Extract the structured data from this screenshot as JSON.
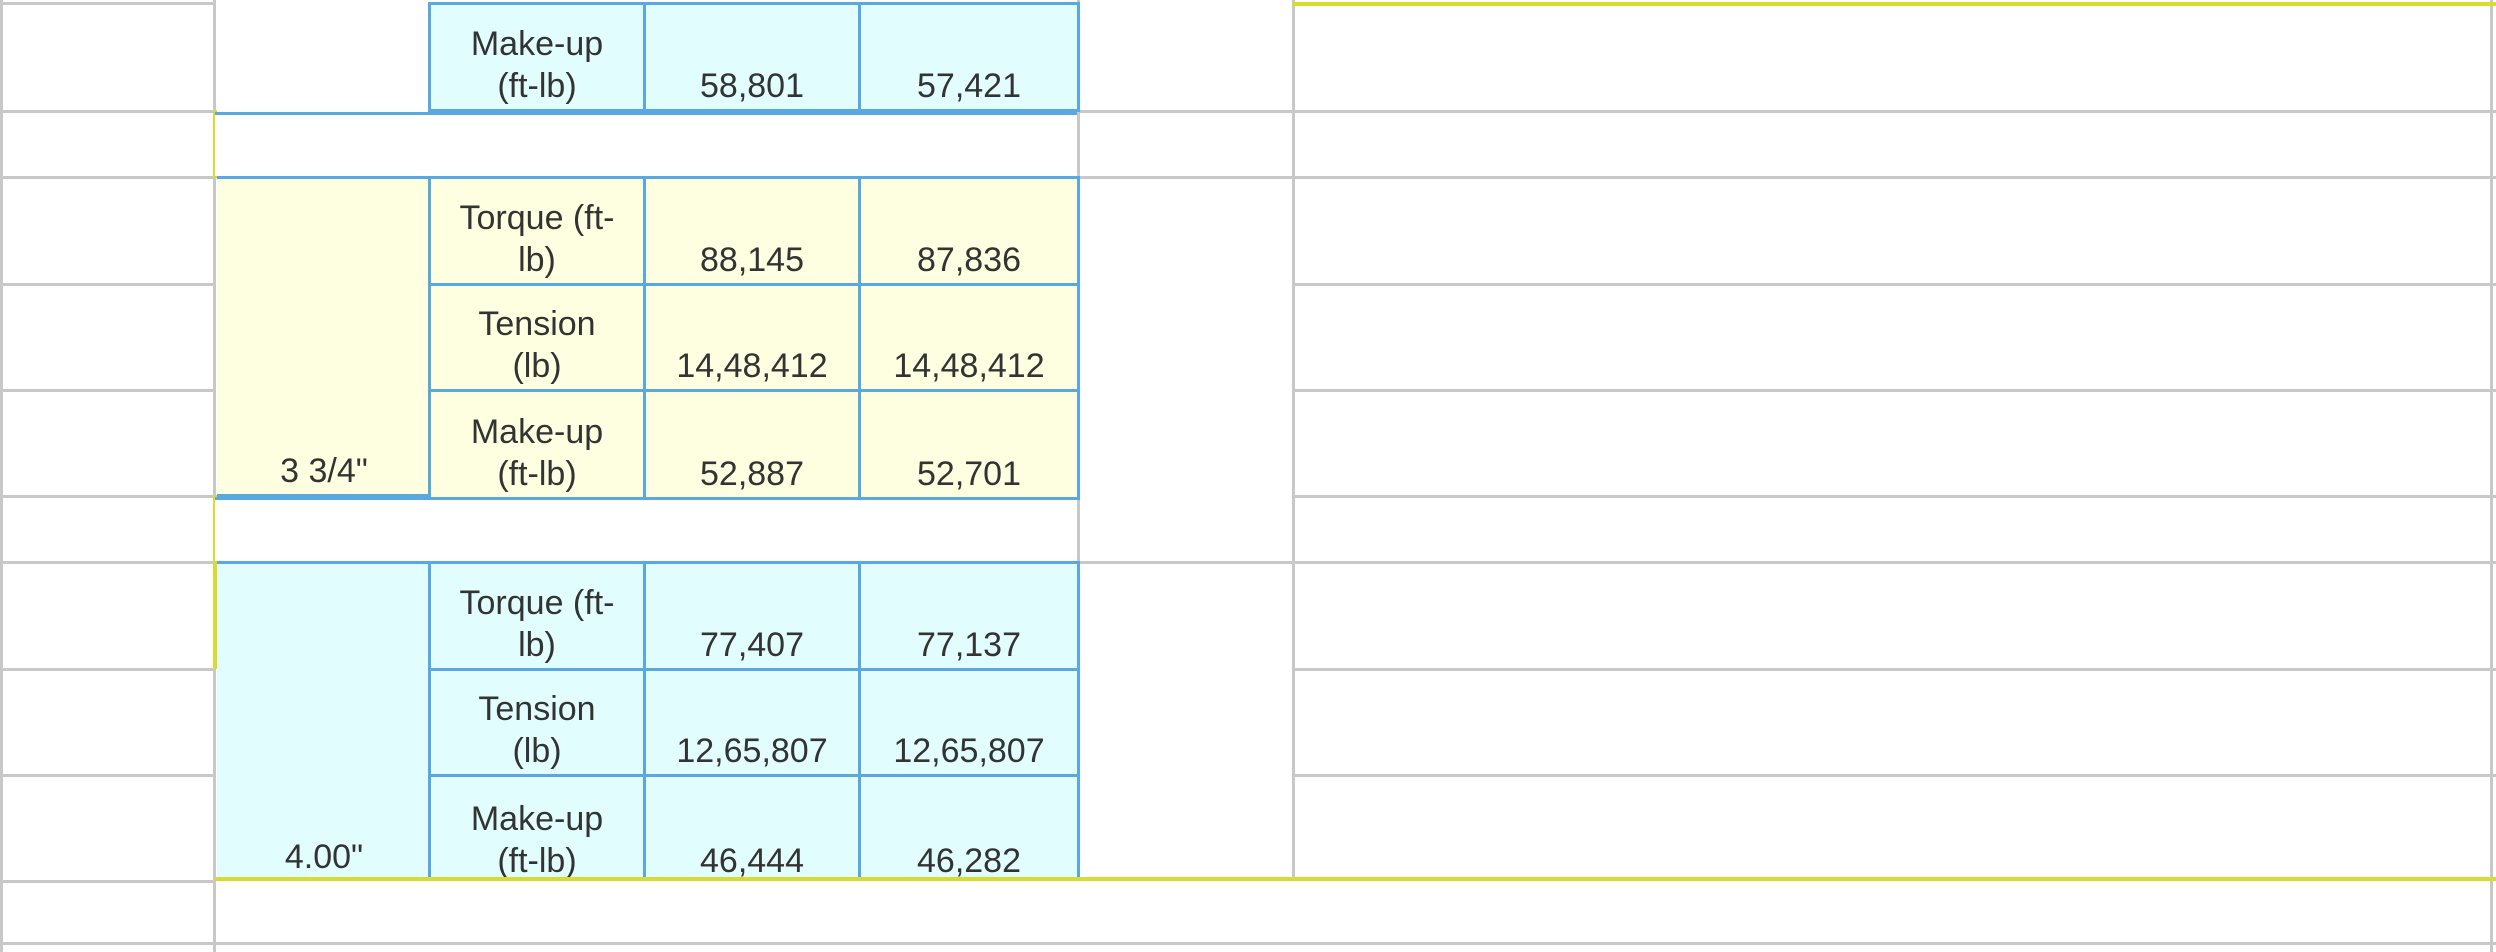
{
  "row_top": {
    "label": "Make-up\n(ft-lb)",
    "v1": "58,801",
    "v2": "57,421"
  },
  "group_yellow": {
    "size": "3 3/4\"",
    "rows": [
      {
        "label": "Torque (ft-\nlb)",
        "v1": "88,145",
        "v2": "87,836"
      },
      {
        "label": "Tension\n(lb)",
        "v1": "14,48,412",
        "v2": "14,48,412"
      },
      {
        "label": "Make-up\n(ft-lb)",
        "v1": "52,887",
        "v2": "52,701"
      }
    ]
  },
  "group_cyan": {
    "size": "4.00\"",
    "rows": [
      {
        "label": "Torque (ft-\nlb)",
        "v1": "77,407",
        "v2": "77,137"
      },
      {
        "label": "Tension\n(lb)",
        "v1": "12,65,807",
        "v2": "12,65,807"
      },
      {
        "label": "Make-up\n(ft-lb)",
        "v1": "46,444",
        "v2": "46,282"
      }
    ]
  },
  "colors": {
    "border_blue": "#5aa8e0",
    "fill_cyan": "#e1fdfd",
    "fill_yellow": "#fefee0",
    "border_yellow": "#d8dc2a",
    "grid_gray": "#c8c8c8"
  }
}
